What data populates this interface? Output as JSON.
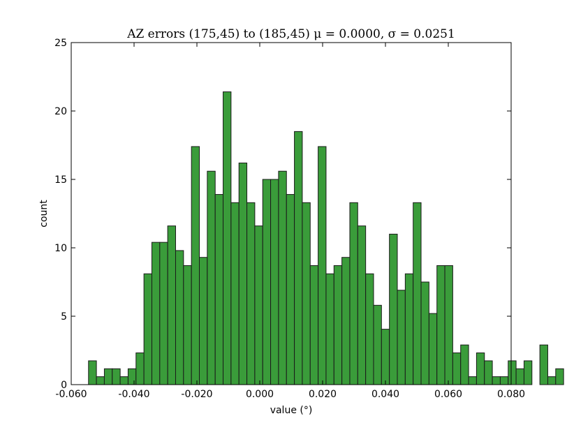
{
  "chart_data": {
    "type": "histogram",
    "title": "AZ errors (175,45) to (185,45) μ = 0.0000, σ = 0.0251",
    "xlabel": "value (°)",
    "ylabel": "count",
    "xlim": [
      -0.06,
      0.08
    ],
    "ylim": [
      0,
      25
    ],
    "xticks": [
      "-0.060",
      "-0.040",
      "-0.020",
      "0.000",
      "0.020",
      "0.040",
      "0.060",
      "0.080"
    ],
    "xtick_values": [
      -0.06,
      -0.04,
      -0.02,
      0.0,
      0.02,
      0.04,
      0.06,
      0.08
    ],
    "yticks": [
      "0",
      "5",
      "10",
      "15",
      "20",
      "25"
    ],
    "ytick_values": [
      0,
      5,
      10,
      15,
      20,
      25
    ],
    "bin_start": -0.0545,
    "bin_width": 0.00252,
    "counts": [
      1.74,
      0.58,
      1.16,
      1.16,
      0.58,
      1.16,
      2.32,
      8.1,
      10.4,
      10.4,
      11.6,
      9.8,
      8.7,
      17.4,
      9.3,
      15.6,
      13.9,
      21.4,
      13.3,
      16.2,
      13.3,
      11.6,
      15.0,
      15.0,
      15.6,
      13.9,
      18.5,
      13.3,
      8.7,
      17.4,
      8.1,
      8.7,
      9.3,
      13.3,
      11.6,
      8.1,
      5.8,
      4.05,
      11.0,
      6.9,
      8.1,
      13.3,
      7.5,
      5.2,
      8.7,
      8.7,
      2.32,
      2.9,
      0.58,
      2.32,
      1.74,
      0.58,
      0.58,
      1.74,
      1.16,
      1.74,
      0.0,
      2.9,
      0.58,
      1.16
    ],
    "bar_color": "#3a9c3a",
    "edge_color": "#1a1a1a",
    "grid": false
  }
}
